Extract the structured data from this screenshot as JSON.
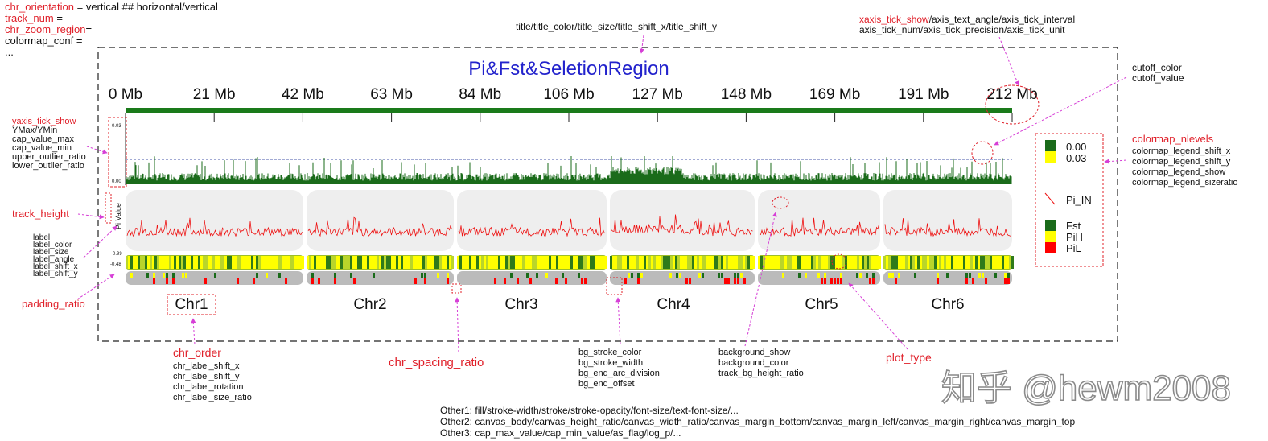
{
  "colors": {
    "annotation_red": "#e0202a",
    "pointer_magenta": "#d63fd6",
    "title_blue": "#2222cc",
    "axis_green": "#1a7a1a",
    "fst_green": "#1a6b1a",
    "pi_red": "#ee1111",
    "pih_yellow": "#ffff00",
    "pil_red": "#ff0000",
    "track_bg": "#eeeeee",
    "bar_bg": "#bbbbbb"
  },
  "top_left": {
    "l1_red": "chr_orientation",
    "l1_rest": " = vertical  ##  horizontal/vertical",
    "l2_red": "track_num",
    "l2_rest": " =",
    "l3_red": "chr_zoom_region",
    "l3_rest": "=",
    "l4": "colormap_conf =",
    "l5": "..."
  },
  "title_params": "title/title_color/title_size/title_shift_x/title_shift_y",
  "xaxis": {
    "l1_red": "xaxis_tick_show",
    "l1_rest": "/axis_text_angle/axis_tick_interval",
    "l2": "axis_tick_num/axis_tick_precision/axis_tick_unit"
  },
  "plot_title": "Pi&Fst&SeletionRegion",
  "ticks": [
    "0 Mb",
    "21 Mb",
    "42 Mb",
    "63 Mb",
    "84 Mb",
    "106 Mb",
    "127 Mb",
    "148 Mb",
    "169 Mb",
    "191 Mb",
    "212 Mb"
  ],
  "cutoff": [
    "cutoff_color",
    "cutoff_value"
  ],
  "yaxis_params": {
    "red": "yaxis_tick_show",
    "lines": [
      "YMax/YMin",
      "cap_value_max",
      "cap_value_min",
      "upper_outlier_ratio",
      "lower_outlier_ratio"
    ]
  },
  "fst_ticks": {
    "max": "0.03",
    "min": "0.00"
  },
  "pi_ticks": {
    "max": "0.99",
    "min": "-0.48"
  },
  "pi_ylabel": "Pi Value",
  "track_height": "track_height",
  "label_params": [
    "label",
    "label_color",
    "label_size",
    "label_angle",
    "label_shift_x",
    "label_shift_y"
  ],
  "padding_ratio": "padding_ratio",
  "chromosomes": [
    "Chr1",
    "Chr2",
    "Chr3",
    "Chr4",
    "Chr5",
    "Chr6"
  ],
  "legend": {
    "cm_labels": [
      "0.00",
      "0.03"
    ],
    "line_label": "Pi_IN",
    "items": [
      {
        "label": "Fst",
        "color": "#1a6b1a"
      },
      {
        "label": "PiH",
        "color": "#ffff00"
      },
      {
        "label": "PiL",
        "color": "#ff0000"
      }
    ]
  },
  "colormap": {
    "red": "colormap_nlevels",
    "lines": [
      "colormap_legend_shift_x",
      "colormap_legend_shift_y",
      "colormap_legend_show",
      "colormap_legend_sizeratio"
    ]
  },
  "chr_order": {
    "red": "chr_order",
    "lines": [
      "chr_label_shift_x",
      "chr_label_shift_y",
      "chr_label_rotation",
      "chr_label_size_ratio"
    ]
  },
  "chr_spacing_ratio": "chr_spacing_ratio",
  "bg_params": [
    "bg_stroke_color",
    "bg_stroke_width",
    "bg_end_arc_division",
    "bg_end_offset"
  ],
  "background_params": [
    "background_show",
    "background_color",
    "track_bg_height_ratio"
  ],
  "plot_type": "plot_type",
  "watermark": "知乎 @hewm2008",
  "other": [
    "Other1:  fill/stroke-width/stroke/stroke-opacity/font-size/text-font-size/...",
    "Other2:  canvas_body/canvas_height_ratio/canvas_width_ratio/canvas_margin_bottom/canvas_margin_left/canvas_margin_right/canvas_margin_top",
    "Other3: cap_max_value/cap_min_value/as_flag/log_p/..."
  ]
}
